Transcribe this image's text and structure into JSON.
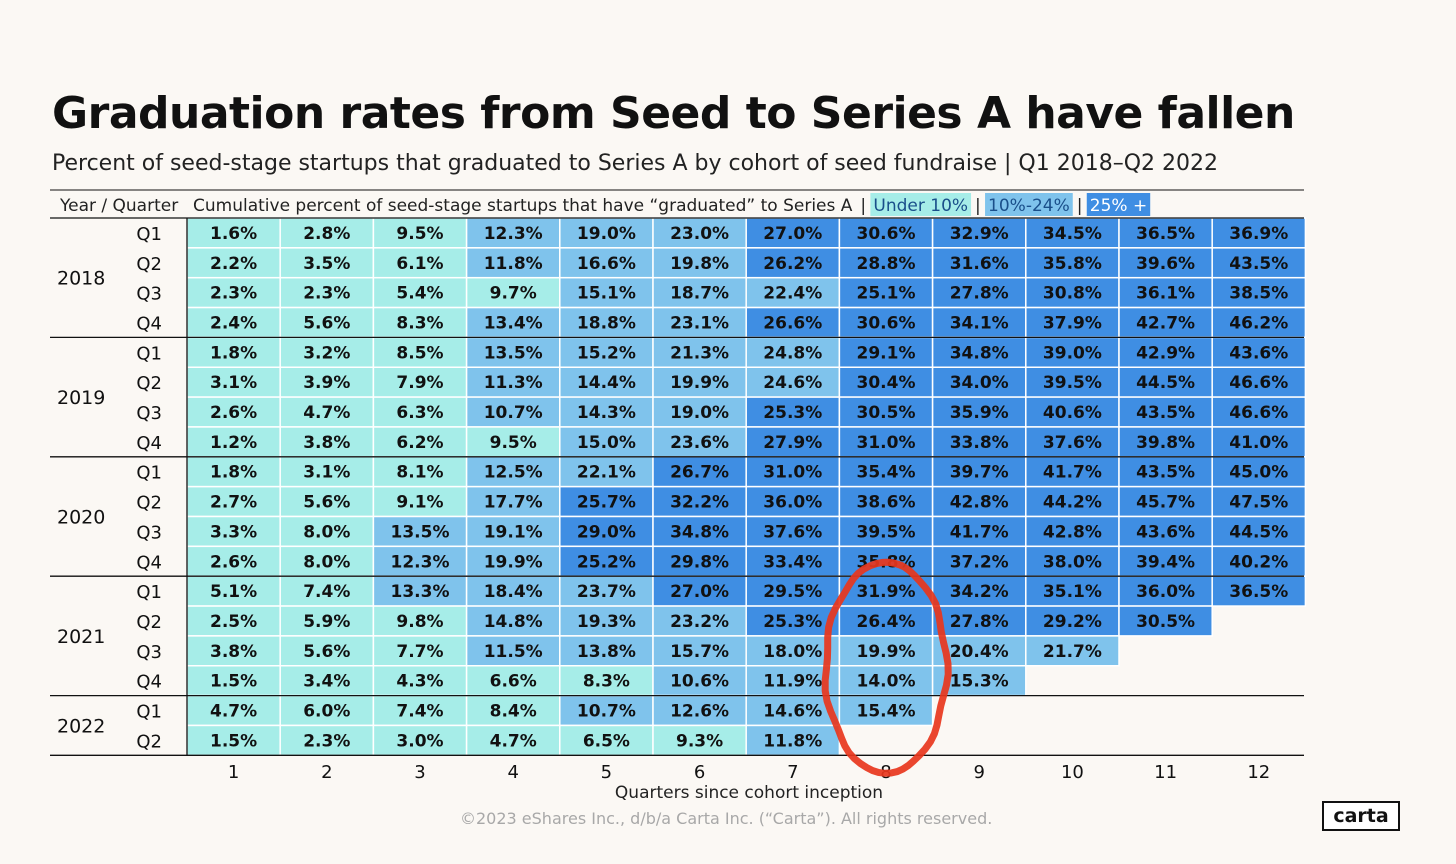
{
  "title": "Graduation rates from Seed to Series A have fallen",
  "subtitle": "Percent of seed-stage startups that graduated to Series A by cohort of seed fundraise | Q1 2018–Q2 2022",
  "footer": {
    "copyright": "©2023 eShares Inc., d/b/a Carta Inc. (“Carta”). All rights reserved.",
    "logo_text": "carta"
  },
  "chart_data": {
    "type": "heatmap",
    "row_header": "Year / Quarter",
    "column_header": "Cumulative percent of seed-stage startups that have “graduated” to Series A",
    "separator": "|",
    "legend": [
      {
        "label": "Under 10%",
        "color": "#a6ede8"
      },
      {
        "label": "10%-24%",
        "color": "#7fc3ec"
      },
      {
        "label": "25% +",
        "color": "#3f8ee3"
      }
    ],
    "colors": {
      "low": "#a6ede8",
      "mid": "#7fc3ec",
      "high": "#3f8ee3",
      "cell_border": "#ffffff",
      "annotation": "#e8361c"
    },
    "thresholds": [
      10,
      25
    ],
    "xlabel": "Quarters since cohort inception",
    "x": [
      "1",
      "2",
      "3",
      "4",
      "5",
      "6",
      "7",
      "8",
      "9",
      "10",
      "11",
      "12"
    ],
    "years": [
      {
        "year": "2018",
        "quarters": [
          "Q1",
          "Q2",
          "Q3",
          "Q4"
        ]
      },
      {
        "year": "2019",
        "quarters": [
          "Q1",
          "Q2",
          "Q3",
          "Q4"
        ]
      },
      {
        "year": "2020",
        "quarters": [
          "Q1",
          "Q2",
          "Q3",
          "Q4"
        ]
      },
      {
        "year": "2021",
        "quarters": [
          "Q1",
          "Q2",
          "Q3",
          "Q4"
        ]
      },
      {
        "year": "2022",
        "quarters": [
          "Q1",
          "Q2"
        ]
      }
    ],
    "values": [
      [
        "1.6%",
        "2.8%",
        "9.5%",
        "12.3%",
        "19.0%",
        "23.0%",
        "27.0%",
        "30.6%",
        "32.9%",
        "34.5%",
        "36.5%",
        "36.9%"
      ],
      [
        "2.2%",
        "3.5%",
        "6.1%",
        "11.8%",
        "16.6%",
        "19.8%",
        "26.2%",
        "28.8%",
        "31.6%",
        "35.8%",
        "39.6%",
        "43.5%"
      ],
      [
        "2.3%",
        "2.3%",
        "5.4%",
        "9.7%",
        "15.1%",
        "18.7%",
        "22.4%",
        "25.1%",
        "27.8%",
        "30.8%",
        "36.1%",
        "38.5%"
      ],
      [
        "2.4%",
        "5.6%",
        "8.3%",
        "13.4%",
        "18.8%",
        "23.1%",
        "26.6%",
        "30.6%",
        "34.1%",
        "37.9%",
        "42.7%",
        "46.2%"
      ],
      [
        "1.8%",
        "3.2%",
        "8.5%",
        "13.5%",
        "15.2%",
        "21.3%",
        "24.8%",
        "29.1%",
        "34.8%",
        "39.0%",
        "42.9%",
        "43.6%"
      ],
      [
        "3.1%",
        "3.9%",
        "7.9%",
        "11.3%",
        "14.4%",
        "19.9%",
        "24.6%",
        "30.4%",
        "34.0%",
        "39.5%",
        "44.5%",
        "46.6%"
      ],
      [
        "2.6%",
        "4.7%",
        "6.3%",
        "10.7%",
        "14.3%",
        "19.0%",
        "25.3%",
        "30.5%",
        "35.9%",
        "40.6%",
        "43.5%",
        "46.6%"
      ],
      [
        "1.2%",
        "3.8%",
        "6.2%",
        "9.5%",
        "15.0%",
        "23.6%",
        "27.9%",
        "31.0%",
        "33.8%",
        "37.6%",
        "39.8%",
        "41.0%"
      ],
      [
        "1.8%",
        "3.1%",
        "8.1%",
        "12.5%",
        "22.1%",
        "26.7%",
        "31.0%",
        "35.4%",
        "39.7%",
        "41.7%",
        "43.5%",
        "45.0%"
      ],
      [
        "2.7%",
        "5.6%",
        "9.1%",
        "17.7%",
        "25.7%",
        "32.2%",
        "36.0%",
        "38.6%",
        "42.8%",
        "44.2%",
        "45.7%",
        "47.5%"
      ],
      [
        "3.3%",
        "8.0%",
        "13.5%",
        "19.1%",
        "29.0%",
        "34.8%",
        "37.6%",
        "39.5%",
        "41.7%",
        "42.8%",
        "43.6%",
        "44.5%"
      ],
      [
        "2.6%",
        "8.0%",
        "12.3%",
        "19.9%",
        "25.2%",
        "29.8%",
        "33.4%",
        "35.8%",
        "37.2%",
        "38.0%",
        "39.4%",
        "40.2%"
      ],
      [
        "5.1%",
        "7.4%",
        "13.3%",
        "18.4%",
        "23.7%",
        "27.0%",
        "29.5%",
        "31.9%",
        "34.2%",
        "35.1%",
        "36.0%",
        "36.5%"
      ],
      [
        "2.5%",
        "5.9%",
        "9.8%",
        "14.8%",
        "19.3%",
        "23.2%",
        "25.3%",
        "26.4%",
        "27.8%",
        "29.2%",
        "30.5%"
      ],
      [
        "3.8%",
        "5.6%",
        "7.7%",
        "11.5%",
        "13.8%",
        "15.7%",
        "18.0%",
        "19.9%",
        "20.4%",
        "21.7%"
      ],
      [
        "1.5%",
        "3.4%",
        "4.3%",
        "6.6%",
        "8.3%",
        "10.6%",
        "11.9%",
        "14.0%",
        "15.3%"
      ],
      [
        "4.7%",
        "6.0%",
        "7.4%",
        "8.4%",
        "10.7%",
        "12.6%",
        "14.6%",
        "15.4%"
      ],
      [
        "1.5%",
        "2.3%",
        "3.0%",
        "4.7%",
        "6.5%",
        "9.3%",
        "11.8%"
      ]
    ],
    "annotation": {
      "type": "hand-drawn-ellipse",
      "column": "8",
      "rows_from": 12,
      "rows_to": 17
    }
  }
}
